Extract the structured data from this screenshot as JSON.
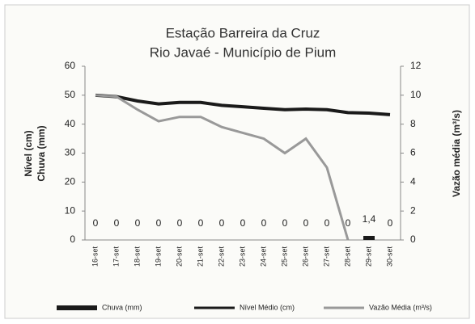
{
  "chart_data": {
    "type": "bar",
    "title": [
      "Estação Barreira da Cruz",
      "Rio Javaé - Município de Pium"
    ],
    "ylabel": [
      "Nível (cm)",
      "Chuva (mm)"
    ],
    "y2label": "Vazão média (m³/s)",
    "categories": [
      "16-set",
      "17-set",
      "18-set",
      "19-set",
      "20-set",
      "21-set",
      "22-set",
      "23-set",
      "24-set",
      "25-set",
      "26-set",
      "27-set",
      "28-set",
      "29-set",
      "30-set"
    ],
    "series": [
      {
        "name": "Chuva (mm)",
        "type": "bar",
        "color": "#1a1a1a",
        "values": [
          0,
          0,
          0,
          0,
          0,
          0,
          0,
          0,
          0,
          0,
          0,
          0,
          0,
          1.4,
          0
        ],
        "value_labels": [
          "0",
          "0",
          "0",
          "0",
          "0",
          "0",
          "0",
          "0",
          "0",
          "0",
          "0",
          "0",
          "0",
          "1,4",
          "0"
        ]
      },
      {
        "name": "Nível Médio (cm)",
        "type": "line",
        "color": "#1a1a1a",
        "values": [
          50,
          49.5,
          48,
          47,
          47.5,
          47.5,
          46.5,
          46,
          45.5,
          45,
          45.2,
          45,
          44,
          43.8,
          43.3
        ]
      },
      {
        "name": "Vazão Média (m³/s)",
        "type": "line",
        "axis": "y2",
        "color": "#999999",
        "values": [
          10,
          9.9,
          9,
          8.2,
          8.5,
          8.5,
          7.8,
          7.4,
          7,
          6,
          7,
          5,
          0,
          null,
          null
        ]
      }
    ],
    "ylim": [
      0,
      60
    ],
    "yticks": [
      0,
      10,
      20,
      30,
      40,
      50,
      60
    ],
    "y2lim": [
      0,
      12
    ],
    "y2ticks": [
      0,
      2,
      4,
      6,
      8,
      10,
      12
    ],
    "legend": "bottom"
  }
}
